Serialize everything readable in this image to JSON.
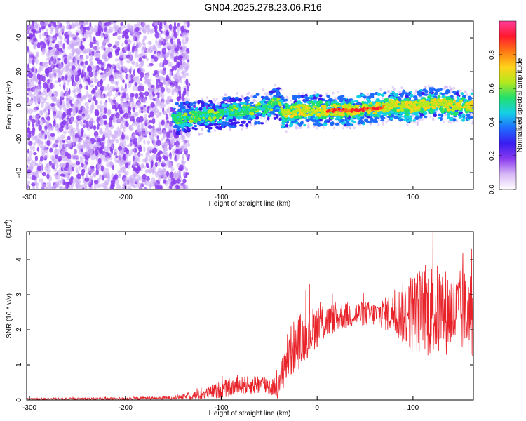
{
  "title": "GN04.2025.278.23.06.R16",
  "colors": {
    "snr_line": "#e8232a",
    "scatter_noise": "#8a3bf0",
    "scatter_noise_light": "#c9a6f5",
    "colormap": [
      "#ffffff",
      "#d7b8f5",
      "#8a3bf0",
      "#3a1cf0",
      "#1f6bff",
      "#16d0e6",
      "#23e06a",
      "#b5e81e",
      "#ffd21a",
      "#ff7a14",
      "#ff1a2e",
      "#ff3c9a"
    ]
  },
  "chart_data": [
    {
      "type": "heatmap",
      "title": "",
      "xlabel": "Height of straight line (km)",
      "ylabel": "Frequency (Hz)",
      "xlim": [
        -303,
        163
      ],
      "ylim": [
        -50,
        50
      ],
      "x_ticks": [
        -300,
        -200,
        -100,
        0,
        100
      ],
      "x_tick_labels": [
        "-300",
        "-200",
        "-100",
        "0",
        "100"
      ],
      "y_ticks": [
        -40,
        -20,
        0,
        20,
        40
      ],
      "y_tick_labels": [
        "-40",
        "-20",
        "0",
        "20",
        "40"
      ],
      "colorbar": {
        "label": "Normalized spectral amplitude",
        "range": [
          0,
          1
        ],
        "ticks": [
          0,
          0.2,
          0.4,
          0.6,
          0.8
        ],
        "tick_labels": [
          "0.0",
          "0.2",
          "0.4",
          "0.6",
          "0.8"
        ]
      },
      "features": {
        "noise_region_x": [
          -303,
          -140
        ],
        "signal_center_track": [
          [
            -150,
            -8
          ],
          [
            -130,
            -7
          ],
          [
            -110,
            -6
          ],
          [
            -90,
            -4
          ],
          [
            -70,
            -3
          ],
          [
            -50,
            -1
          ],
          [
            -40,
            2
          ],
          [
            -35,
            -5
          ],
          [
            -20,
            -3
          ],
          [
            0,
            -3
          ],
          [
            20,
            -3
          ],
          [
            40,
            -3
          ],
          [
            60,
            -2
          ],
          [
            80,
            0
          ],
          [
            100,
            -1
          ],
          [
            120,
            1
          ],
          [
            140,
            0
          ],
          [
            163,
            -1
          ]
        ],
        "peak_x_range": [
          10,
          70
        ]
      }
    },
    {
      "type": "line",
      "title": "",
      "xlabel": "Height of straight line (km)",
      "ylabel": "SNR (10 * v/v)",
      "y_scale_label": "(x10",
      "y_scale_exponent": "4",
      "xlim": [
        -303,
        163
      ],
      "ylim": [
        0,
        4.8
      ],
      "x_ticks": [
        -300,
        -200,
        -100,
        0,
        100
      ],
      "x_tick_labels": [
        "-300",
        "-200",
        "-100",
        "0",
        "100"
      ],
      "y_ticks": [
        0,
        1,
        2,
        3,
        4
      ],
      "y_tick_labels": [
        "0",
        "1",
        "2",
        "3",
        "4"
      ],
      "series": [
        {
          "name": "",
          "envelope": [
            [
              -303,
              0.03
            ],
            [
              -200,
              0.04
            ],
            [
              -150,
              0.06
            ],
            [
              -120,
              0.15
            ],
            [
              -100,
              0.3
            ],
            [
              -80,
              0.4
            ],
            [
              -60,
              0.45
            ],
            [
              -40,
              0.35
            ],
            [
              -35,
              1.0
            ],
            [
              -25,
              1.5
            ],
            [
              -10,
              1.9
            ],
            [
              0,
              2.1
            ],
            [
              20,
              2.35
            ],
            [
              40,
              2.45
            ],
            [
              60,
              2.45
            ],
            [
              80,
              2.45
            ],
            [
              100,
              2.5
            ],
            [
              120,
              2.55
            ],
            [
              140,
              2.5
            ],
            [
              163,
              2.45
            ]
          ],
          "noise_amplitude": [
            [
              -303,
              0.02
            ],
            [
              -150,
              0.05
            ],
            [
              -120,
              0.15
            ],
            [
              -100,
              0.25
            ],
            [
              -40,
              0.3
            ],
            [
              -35,
              0.7
            ],
            [
              -20,
              0.8
            ],
            [
              0,
              0.6
            ],
            [
              20,
              0.4
            ],
            [
              60,
              0.35
            ],
            [
              80,
              0.6
            ],
            [
              100,
              1.2
            ],
            [
              120,
              1.4
            ],
            [
              140,
              1.2
            ],
            [
              163,
              1.3
            ]
          ]
        }
      ]
    }
  ]
}
